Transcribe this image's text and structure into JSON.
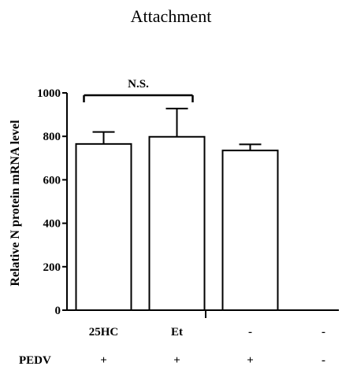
{
  "chart_data": {
    "type": "bar",
    "title": "Attachment",
    "ylabel": "Relative N protein mRNA level",
    "xlabel": "",
    "ylim": [
      0,
      1000
    ],
    "yticks": [
      "0",
      "200",
      "400",
      "600",
      "800",
      "1000"
    ],
    "categories": [
      "25HC",
      "Et",
      "-",
      "-"
    ],
    "values": [
      765,
      798,
      735,
      null
    ],
    "errors": [
      55,
      130,
      28,
      null
    ],
    "row_label": "PEDV",
    "row_values": [
      "+",
      "+",
      "+",
      "-"
    ],
    "significance": {
      "label": "N.S.",
      "from": 0,
      "to": 1
    },
    "grid": false,
    "legend": "none"
  },
  "colors": {
    "bar_fill": "#ffffff",
    "bar_stroke": "#000000"
  }
}
